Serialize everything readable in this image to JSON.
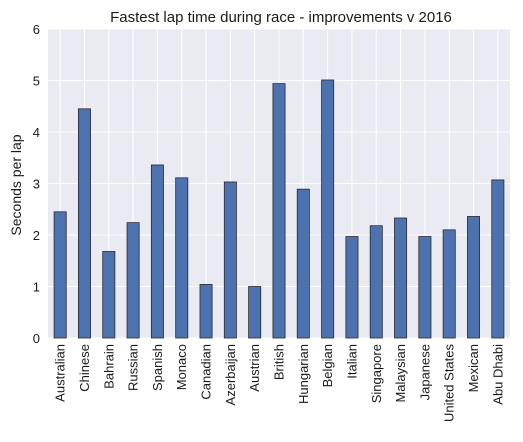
{
  "chart_data": {
    "type": "bar",
    "title": "Fastest lap time during race - improvements v 2016",
    "xlabel": "",
    "ylabel": "Seconds per lap",
    "ylim": [
      0,
      6
    ],
    "yticks": [
      0,
      1,
      2,
      3,
      4,
      5,
      6
    ],
    "grid": true,
    "legend": "none",
    "categories": [
      "Australian",
      "Chinese",
      "Bahrain",
      "Russian",
      "Spanish",
      "Monaco",
      "Canadian",
      "Azerbaijan",
      "Austrian",
      "British",
      "Hungarian",
      "Belgian",
      "Italian",
      "Singapore",
      "Malaysian",
      "Japanese",
      "United States",
      "Mexican",
      "Abu Dhabi"
    ],
    "values": [
      2.45,
      4.45,
      1.68,
      2.24,
      3.36,
      3.11,
      1.04,
      3.03,
      1.0,
      4.94,
      2.89,
      5.01,
      1.97,
      2.18,
      2.33,
      1.97,
      2.1,
      2.36,
      3.07
    ],
    "colors": {
      "bar": "#4c72b0",
      "bar_edge": "#2b2b2b",
      "plot_bg": "#eaeaf2",
      "grid": "#ffffff"
    }
  }
}
